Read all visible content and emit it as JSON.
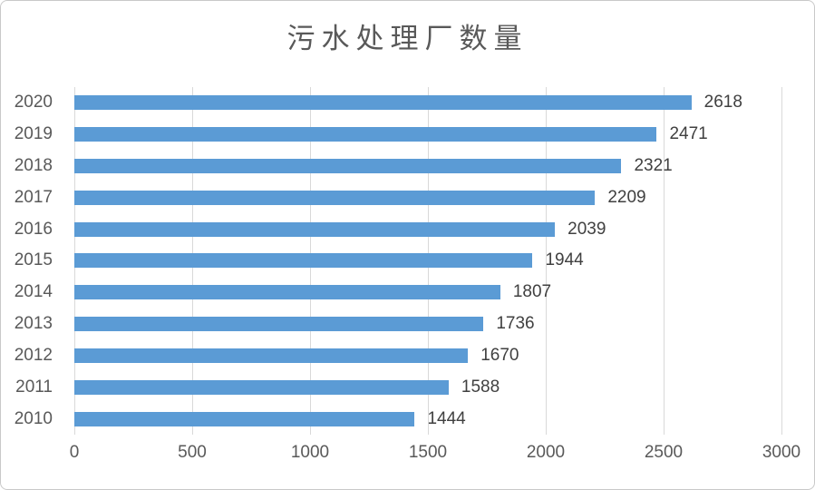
{
  "chart_data": {
    "type": "bar",
    "orientation": "horizontal",
    "title": "污水处理厂数量",
    "categories": [
      "2020",
      "2019",
      "2018",
      "2017",
      "2016",
      "2015",
      "2014",
      "2013",
      "2012",
      "2011",
      "2010"
    ],
    "values": [
      2618,
      2471,
      2321,
      2209,
      2039,
      1944,
      1807,
      1736,
      1670,
      1588,
      1444
    ],
    "data_labels": [
      "2618",
      "2471",
      "2321",
      "2209",
      "2039",
      "1944",
      "1807",
      "1736",
      "1670",
      "1588",
      "1444"
    ],
    "xlabel": "",
    "ylabel": "",
    "xlim": [
      0,
      3000
    ],
    "x_ticks": [
      0,
      500,
      1000,
      1500,
      2000,
      2500,
      3000
    ],
    "x_tick_labels": [
      "0",
      "500",
      "1000",
      "1500",
      "2000",
      "2500",
      "3000"
    ],
    "grid": "vertical-only",
    "legend": "none",
    "colors": {
      "bar": "#5B9BD5",
      "gridline": "#D9D9D9",
      "axis_line": "#D9D9D9",
      "tick_label": "#595959",
      "data_label": "#404040",
      "title": "#595959",
      "background": "#ffffff"
    }
  }
}
